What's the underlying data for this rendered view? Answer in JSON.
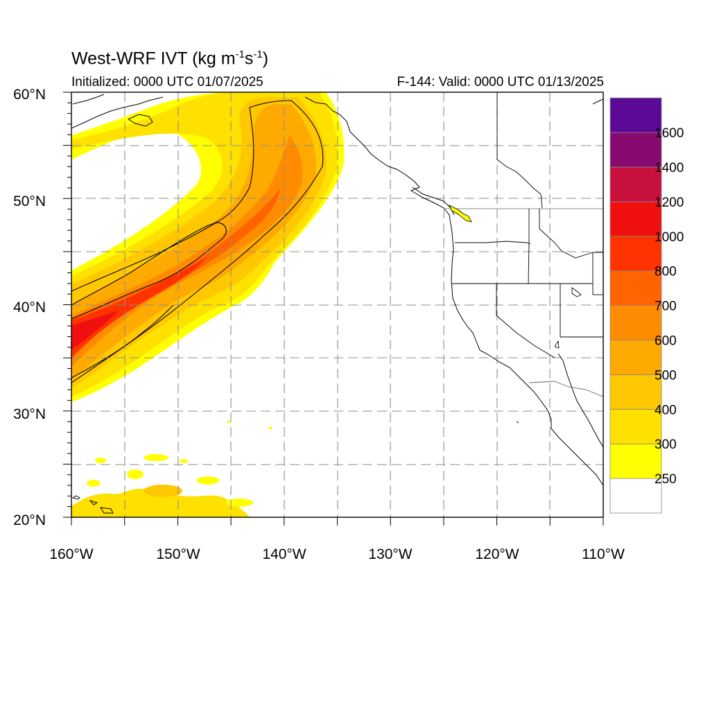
{
  "title": {
    "main": "West-WRF IVT (kg m",
    "exp1": "-1",
    "mid": "s",
    "exp2": "-1",
    "close": ")"
  },
  "initialized": "Initialized: 0000 UTC 01/07/2025",
  "valid": "F-144: Valid: 0000 UTC 01/13/2025",
  "map": {
    "lon_range": [
      -160,
      -110
    ],
    "lat_range": [
      20,
      60
    ],
    "lat_ticks": [
      "20°N",
      "30°N",
      "40°N",
      "50°N",
      "60°N"
    ],
    "lon_ticks": [
      "160°W",
      "150°W",
      "140°W",
      "130°W",
      "120°W",
      "110°W"
    ],
    "gridlines": "dashed every 5°"
  },
  "colorbar": {
    "labels": [
      "250",
      "300",
      "400",
      "500",
      "600",
      "700",
      "800",
      "1000",
      "1200",
      "1400",
      "1600"
    ],
    "colors": [
      "#ffffff",
      "#ffff00",
      "#ffe100",
      "#ffc800",
      "#ffaa00",
      "#ff8c00",
      "#ff6400",
      "#ff3200",
      "#f01010",
      "#c8103c",
      "#880a6e",
      "#5a0a96"
    ]
  }
}
